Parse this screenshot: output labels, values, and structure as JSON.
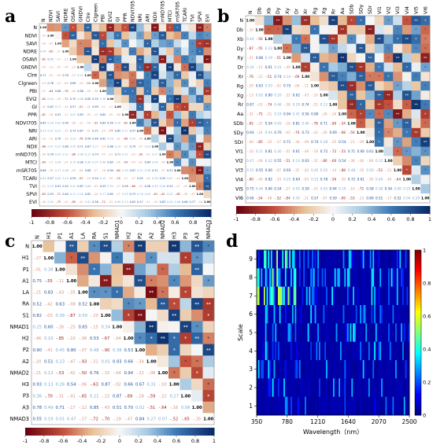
{
  "panels": [
    {
      "letter": "a",
      "type": "heatmap",
      "variables": [
        "N",
        "NDVI",
        "SAVI",
        "NDRE",
        "OSAVI",
        "GNDVI",
        "Clre",
        "Clgreen",
        "PBI",
        "EVI2",
        "GI",
        "PPR",
        "NDVI705",
        "NRI",
        "ARI",
        "NDII",
        "mND705",
        "MTCI",
        "mSR705",
        "TCARI",
        "TVI",
        "SPVI",
        "EVI"
      ],
      "colorbar_ticks": [
        "-1",
        "-0.8",
        "-0.6",
        "-0.4",
        "-0.2",
        "0",
        "0.2",
        "0.4",
        "0.6",
        "0.8",
        "1"
      ],
      "palette": "rdbu"
    },
    {
      "letter": "b",
      "type": "heatmap",
      "variables": [
        "N",
        "Db",
        "Xb",
        "Dy",
        "Xy",
        "Dr",
        "Xr",
        "Rg",
        "Xg",
        "Rr",
        "Aa",
        "SDb",
        "SDy",
        "SDr",
        "VI1",
        "VI2",
        "VI3",
        "VI4",
        "VI5",
        "VI6"
      ],
      "colorbar_ticks": [
        "-1",
        "-0.8",
        "-0.6",
        "-0.4",
        "-0.2",
        "0",
        "0.2",
        "0.4",
        "0.6",
        "0.8",
        "1"
      ],
      "palette": "rdbu"
    },
    {
      "letter": "c",
      "type": "heatmap",
      "variables": [
        "N",
        "H1",
        "P1",
        "A1",
        "LA",
        "RA",
        "S1",
        "NMAD1",
        "H2",
        "P2",
        "A2",
        "NMAD2",
        "H3",
        "P3",
        "A3",
        "NMAD3"
      ],
      "colorbar_ticks": [
        "-1",
        "-0.8",
        "-0.6",
        "-0.4",
        "-0.2",
        "0",
        "0.2",
        "0.4",
        "0.6",
        "0.8",
        "1"
      ],
      "palette": "rdbu"
    },
    {
      "letter": "d",
      "type": "heatmap",
      "xlabel": "Wavelength（nm）",
      "ylabel": "Scale",
      "x_ticks": [
        350,
        780,
        1210,
        1640,
        2070,
        2500
      ],
      "y_ticks": [
        1,
        2,
        3,
        4,
        5,
        6,
        7,
        8,
        9
      ],
      "colorbar_ticks": [
        "0",
        "0.2",
        "0.4",
        "0.6",
        "0.8",
        "1"
      ],
      "palette": "jet"
    }
  ],
  "chart_data": [
    {
      "type": "heatmap",
      "panel": "a",
      "rows": [
        "N",
        "NDVI",
        "SAVI",
        "NDRE",
        "OSAVI",
        "GNDVI",
        "Clre",
        "Clgreen",
        "PBI",
        "EVI2",
        "GI",
        "PPR",
        "NDVI705",
        "NRI",
        "ARI",
        "NDII",
        "mND705",
        "MTCI",
        "mSR705",
        "TCARI",
        "TVI",
        "SPVI",
        "EVI"
      ],
      "columns": [
        "N",
        "NDVI",
        "SAVI",
        "NDRE",
        "OSAVI",
        "GNDVI",
        "Clre",
        "Clgreen",
        "PBI",
        "EVI2",
        "GI",
        "PPR",
        "NDVI705",
        "NRI",
        "ARI",
        "NDII",
        "mND705",
        "MTCI",
        "mSR705",
        "TCARI",
        "TVI",
        "SPVI",
        "EVI"
      ],
      "value_range": [
        -1,
        1
      ],
      "diagonal": 1.0
    },
    {
      "type": "heatmap",
      "panel": "b",
      "rows": [
        "N",
        "Db",
        "Xb",
        "Dy",
        "Xy",
        "Dr",
        "Xr",
        "Rg",
        "Xg",
        "Rr",
        "Aa",
        "SDb",
        "SDy",
        "SDr",
        "VI1",
        "VI2",
        "VI3",
        "VI4",
        "VI5",
        "VI6"
      ],
      "columns": [
        "N",
        "Db",
        "Xb",
        "Dy",
        "Xy",
        "Dr",
        "Xr",
        "Rg",
        "Xg",
        "Rr",
        "Aa",
        "SDb",
        "SDy",
        "SDr",
        "VI1",
        "VI2",
        "VI3",
        "VI4",
        "VI5",
        "VI6"
      ],
      "value_range": [
        -1,
        1
      ],
      "diagonal": 1.0
    },
    {
      "type": "heatmap",
      "panel": "c",
      "rows": [
        "N",
        "H1",
        "P1",
        "A1",
        "LA",
        "RA",
        "S1",
        "NMAD1",
        "H2",
        "P2",
        "A2",
        "NMAD2",
        "H3",
        "P3",
        "A3",
        "NMAD3"
      ],
      "columns": [
        "N",
        "H1",
        "P1",
        "A1",
        "LA",
        "RA",
        "S1",
        "NMAD1",
        "H2",
        "P2",
        "A2",
        "NMAD2",
        "H3",
        "P3",
        "A3",
        "NMAD3"
      ],
      "value_range": [
        -1,
        1
      ],
      "diagonal": 1.0
    },
    {
      "type": "heatmap",
      "panel": "d",
      "x_range": [
        350,
        2500
      ],
      "y_range": [
        1,
        9
      ],
      "value_range": [
        0,
        1
      ],
      "xlabel": "Wavelength（nm）",
      "ylabel": "Scale"
    }
  ]
}
